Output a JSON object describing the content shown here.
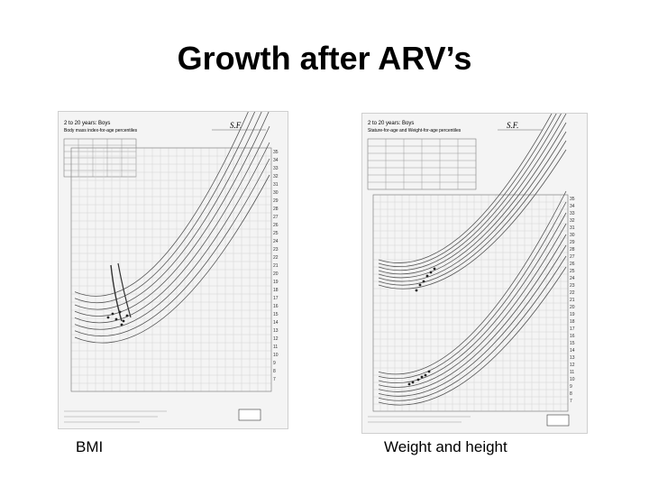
{
  "slide": {
    "title": "Growth after ARV’s"
  },
  "figures": [
    {
      "id": "bmi",
      "caption": "BMI",
      "chart_title_lines": [
        "2 to 20 years: Boys",
        "Body mass index-for-age percentiles"
      ],
      "name_field": "S.F."
    },
    {
      "id": "weight-height",
      "caption": "Weight and height",
      "chart_title_lines": [
        "2 to 20 years: Boys",
        "Stature-for-age and Weight-for-age percentiles"
      ],
      "name_field": "S.F."
    }
  ]
}
